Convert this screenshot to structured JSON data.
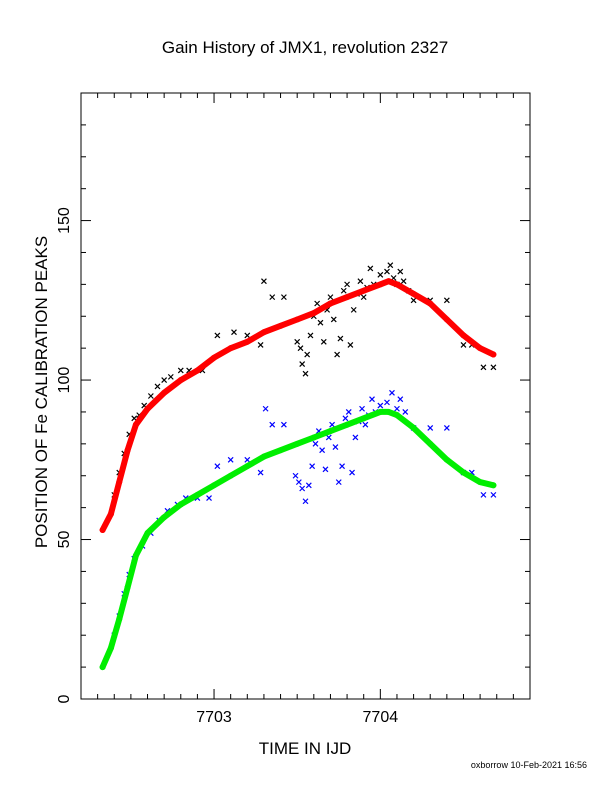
{
  "chart_data": {
    "type": "scatter",
    "title": "Gain History of JMX1, revolution 2327",
    "xlabel": "TIME IN IJD",
    "ylabel": "POSITION OF Fe CALIBRATION PEAKS",
    "footer": "oxborrow 10-Feb-2021 16:56",
    "xlim": [
      7702.2,
      7704.9
    ],
    "ylim": [
      0,
      190
    ],
    "x_ticks": [
      7703,
      7704
    ],
    "x_tick_labels": [
      "7703",
      "7704"
    ],
    "y_ticks": [
      0,
      50,
      100,
      150
    ],
    "y_tick_labels": [
      "0",
      "50",
      "100",
      "150"
    ],
    "grid": false,
    "legend": "none",
    "colors": {
      "upper_points": "#000000",
      "upper_fit": "#ff0000",
      "lower_points": "#0000ff",
      "lower_fit": "#00ee00"
    },
    "series": [
      {
        "marker": "x",
        "color": "#000000",
        "points": [
          [
            7702.4,
            64
          ],
          [
            7702.43,
            71
          ],
          [
            7702.46,
            77
          ],
          [
            7702.49,
            83
          ],
          [
            7702.52,
            88
          ],
          [
            7702.55,
            89
          ],
          [
            7702.58,
            92
          ],
          [
            7702.62,
            95
          ],
          [
            7702.66,
            98
          ],
          [
            7702.7,
            100
          ],
          [
            7702.74,
            101
          ],
          [
            7702.8,
            103
          ],
          [
            7702.85,
            103
          ],
          [
            7702.93,
            103
          ],
          [
            7703.02,
            114
          ],
          [
            7703.12,
            115
          ],
          [
            7703.2,
            114
          ],
          [
            7703.28,
            111
          ],
          [
            7703.3,
            131
          ],
          [
            7703.35,
            126
          ],
          [
            7703.42,
            126
          ],
          [
            7703.5,
            112
          ],
          [
            7703.52,
            110
          ],
          [
            7703.53,
            105
          ],
          [
            7703.55,
            102
          ],
          [
            7703.56,
            108
          ],
          [
            7703.58,
            114
          ],
          [
            7703.6,
            120
          ],
          [
            7703.62,
            124
          ],
          [
            7703.64,
            118
          ],
          [
            7703.66,
            112
          ],
          [
            7703.68,
            122
          ],
          [
            7703.7,
            126
          ],
          [
            7703.72,
            119
          ],
          [
            7703.74,
            108
          ],
          [
            7703.76,
            113
          ],
          [
            7703.78,
            128
          ],
          [
            7703.8,
            130
          ],
          [
            7703.82,
            111
          ],
          [
            7703.84,
            122
          ],
          [
            7703.86,
            127
          ],
          [
            7703.88,
            131
          ],
          [
            7703.9,
            126
          ],
          [
            7703.92,
            129
          ],
          [
            7703.94,
            135
          ],
          [
            7703.96,
            130
          ],
          [
            7704.0,
            133
          ],
          [
            7704.04,
            134
          ],
          [
            7704.06,
            136
          ],
          [
            7704.08,
            132
          ],
          [
            7704.1,
            130
          ],
          [
            7704.12,
            134
          ],
          [
            7704.14,
            131
          ],
          [
            7704.17,
            128
          ],
          [
            7704.2,
            125
          ],
          [
            7704.3,
            125
          ],
          [
            7704.4,
            125
          ],
          [
            7704.5,
            111
          ],
          [
            7704.55,
            111
          ],
          [
            7704.62,
            104
          ],
          [
            7704.68,
            104
          ]
        ]
      },
      {
        "marker": "fit",
        "color": "#ff0000",
        "points": [
          [
            7702.33,
            53
          ],
          [
            7702.38,
            58
          ],
          [
            7702.43,
            68
          ],
          [
            7702.48,
            78
          ],
          [
            7702.53,
            86
          ],
          [
            7702.6,
            91
          ],
          [
            7702.7,
            96
          ],
          [
            7702.8,
            100
          ],
          [
            7702.9,
            103
          ],
          [
            7703.0,
            107
          ],
          [
            7703.1,
            110
          ],
          [
            7703.2,
            112
          ],
          [
            7703.3,
            115
          ],
          [
            7703.4,
            117
          ],
          [
            7703.5,
            119
          ],
          [
            7703.6,
            121
          ],
          [
            7703.7,
            124
          ],
          [
            7703.8,
            126
          ],
          [
            7703.9,
            128
          ],
          [
            7704.0,
            130
          ],
          [
            7704.05,
            131
          ],
          [
            7704.1,
            130
          ],
          [
            7704.2,
            127
          ],
          [
            7704.3,
            124
          ],
          [
            7704.4,
            119
          ],
          [
            7704.5,
            114
          ],
          [
            7704.6,
            110
          ],
          [
            7704.68,
            108
          ]
        ]
      },
      {
        "marker": "x",
        "color": "#0000ff",
        "points": [
          [
            7702.4,
            20
          ],
          [
            7702.43,
            26
          ],
          [
            7702.46,
            33
          ],
          [
            7702.49,
            39
          ],
          [
            7702.52,
            44
          ],
          [
            7702.57,
            48
          ],
          [
            7702.62,
            52
          ],
          [
            7702.67,
            56
          ],
          [
            7702.72,
            59
          ],
          [
            7702.78,
            61
          ],
          [
            7702.83,
            63
          ],
          [
            7702.9,
            63
          ],
          [
            7702.97,
            63
          ],
          [
            7703.02,
            73
          ],
          [
            7703.1,
            75
          ],
          [
            7703.2,
            75
          ],
          [
            7703.28,
            71
          ],
          [
            7703.31,
            91
          ],
          [
            7703.35,
            86
          ],
          [
            7703.42,
            86
          ],
          [
            7703.49,
            70
          ],
          [
            7703.51,
            68
          ],
          [
            7703.53,
            66
          ],
          [
            7703.55,
            62
          ],
          [
            7703.57,
            67
          ],
          [
            7703.59,
            73
          ],
          [
            7703.61,
            80
          ],
          [
            7703.63,
            84
          ],
          [
            7703.65,
            78
          ],
          [
            7703.67,
            72
          ],
          [
            7703.69,
            82
          ],
          [
            7703.71,
            86
          ],
          [
            7703.73,
            79
          ],
          [
            7703.75,
            68
          ],
          [
            7703.77,
            73
          ],
          [
            7703.79,
            88
          ],
          [
            7703.81,
            90
          ],
          [
            7703.83,
            71
          ],
          [
            7703.85,
            82
          ],
          [
            7703.87,
            87
          ],
          [
            7703.89,
            91
          ],
          [
            7703.91,
            86
          ],
          [
            7703.93,
            89
          ],
          [
            7703.95,
            94
          ],
          [
            7703.97,
            90
          ],
          [
            7704.0,
            92
          ],
          [
            7704.04,
            93
          ],
          [
            7704.07,
            96
          ],
          [
            7704.1,
            91
          ],
          [
            7704.12,
            94
          ],
          [
            7704.15,
            90
          ],
          [
            7704.2,
            85
          ],
          [
            7704.3,
            85
          ],
          [
            7704.4,
            85
          ],
          [
            7704.5,
            71
          ],
          [
            7704.55,
            71
          ],
          [
            7704.62,
            64
          ],
          [
            7704.68,
            64
          ]
        ]
      },
      {
        "marker": "fit",
        "color": "#00ee00",
        "points": [
          [
            7702.33,
            10
          ],
          [
            7702.38,
            16
          ],
          [
            7702.43,
            25
          ],
          [
            7702.48,
            35
          ],
          [
            7702.53,
            45
          ],
          [
            7702.6,
            52
          ],
          [
            7702.7,
            57
          ],
          [
            7702.8,
            61
          ],
          [
            7702.9,
            64
          ],
          [
            7703.0,
            67
          ],
          [
            7703.1,
            70
          ],
          [
            7703.2,
            73
          ],
          [
            7703.3,
            76
          ],
          [
            7703.4,
            78
          ],
          [
            7703.5,
            80
          ],
          [
            7703.6,
            82
          ],
          [
            7703.7,
            84
          ],
          [
            7703.8,
            86
          ],
          [
            7703.9,
            88
          ],
          [
            7704.0,
            90
          ],
          [
            7704.05,
            90
          ],
          [
            7704.1,
            89
          ],
          [
            7704.2,
            85
          ],
          [
            7704.3,
            80
          ],
          [
            7704.4,
            75
          ],
          [
            7704.5,
            71
          ],
          [
            7704.6,
            68
          ],
          [
            7704.68,
            67
          ]
        ]
      }
    ]
  }
}
